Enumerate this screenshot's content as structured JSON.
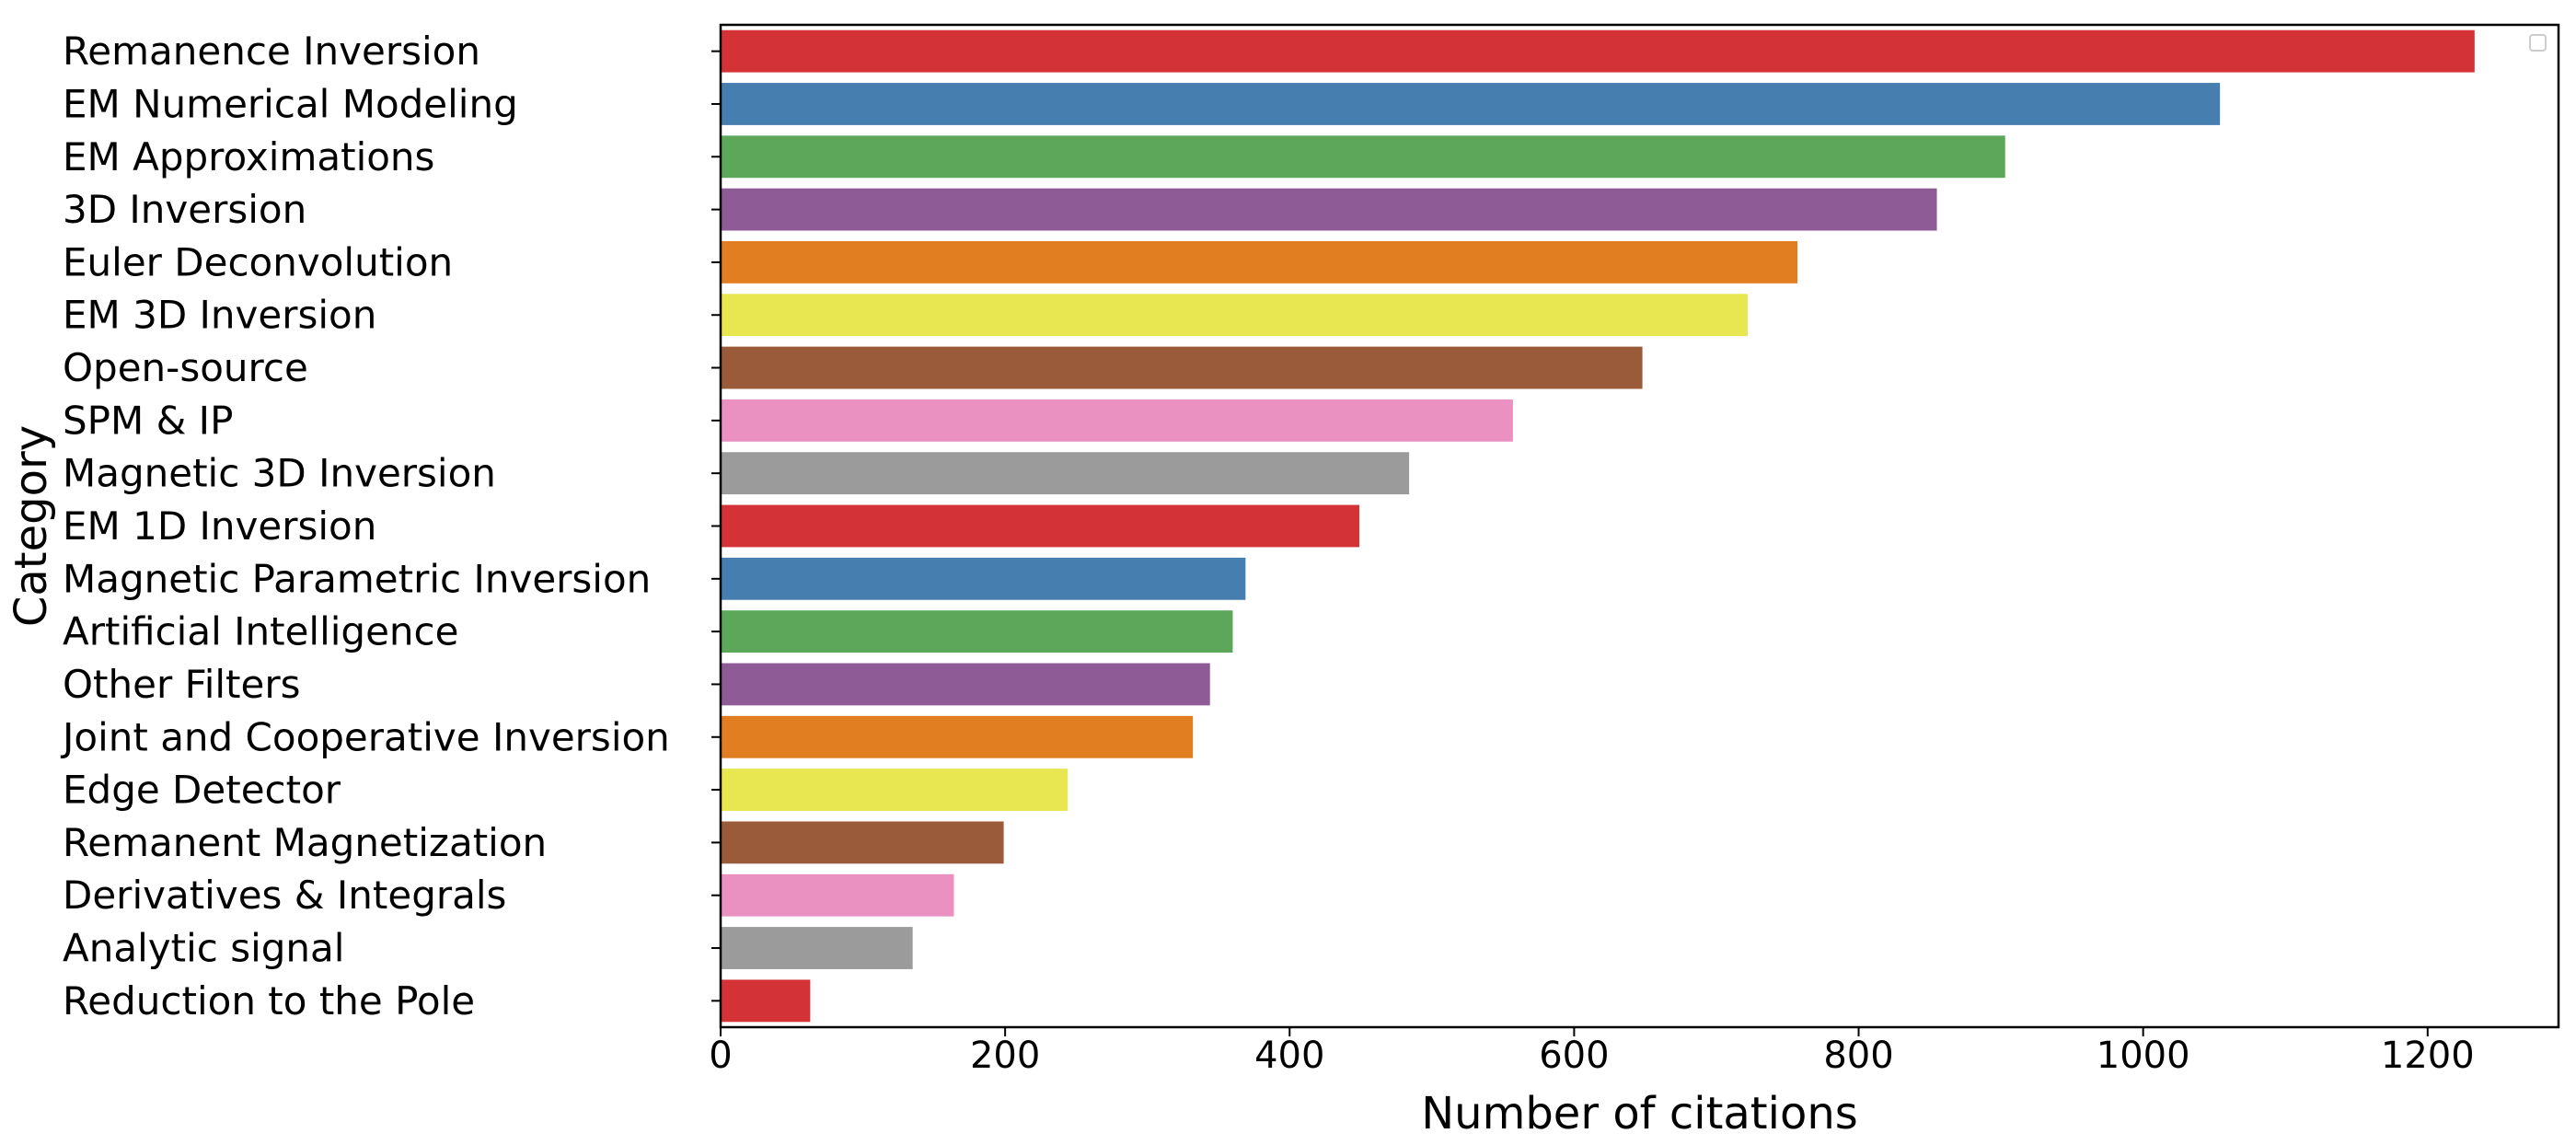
{
  "chart_data": {
    "type": "bar",
    "orientation": "horizontal",
    "xlabel": "Number of citations",
    "ylabel": "Category",
    "xlim": [
      0,
      1292
    ],
    "xticks": [
      0,
      200,
      400,
      600,
      800,
      1000,
      1200
    ],
    "grid": false,
    "legend": "top-right (empty)",
    "categories": [
      "Remanence Inversion",
      "EM Numerical Modeling",
      "EM Approximations",
      "3D Inversion",
      "Euler Deconvolution",
      "EM 3D Inversion",
      "Open-source",
      "SPM & IP",
      "Magnetic 3D Inversion",
      "EM 1D Inversion",
      "Magnetic Parametric Inversion",
      "Artificial Intelligence",
      "Other Filters",
      "Joint and Cooperative Inversion",
      "Edge Detector",
      "Remanent Magnetization",
      "Derivatives & Integrals",
      "Analytic signal",
      "Reduction to the Pole"
    ],
    "values": [
      1233,
      1054,
      903,
      855,
      757,
      722,
      648,
      557,
      484,
      449,
      369,
      360,
      344,
      332,
      244,
      199,
      164,
      135,
      63
    ],
    "colors": [
      "#d33237",
      "#477eb0",
      "#5ca75a",
      "#8f5b97",
      "#e07e21",
      "#e8e751",
      "#9a5b3a",
      "#ea91c2",
      "#9b9b9b",
      "#d33237",
      "#477eb0",
      "#5ca75a",
      "#8f5b97",
      "#e07e21",
      "#e8e751",
      "#9a5b3a",
      "#ea91c2",
      "#9b9b9b",
      "#d33237"
    ]
  }
}
